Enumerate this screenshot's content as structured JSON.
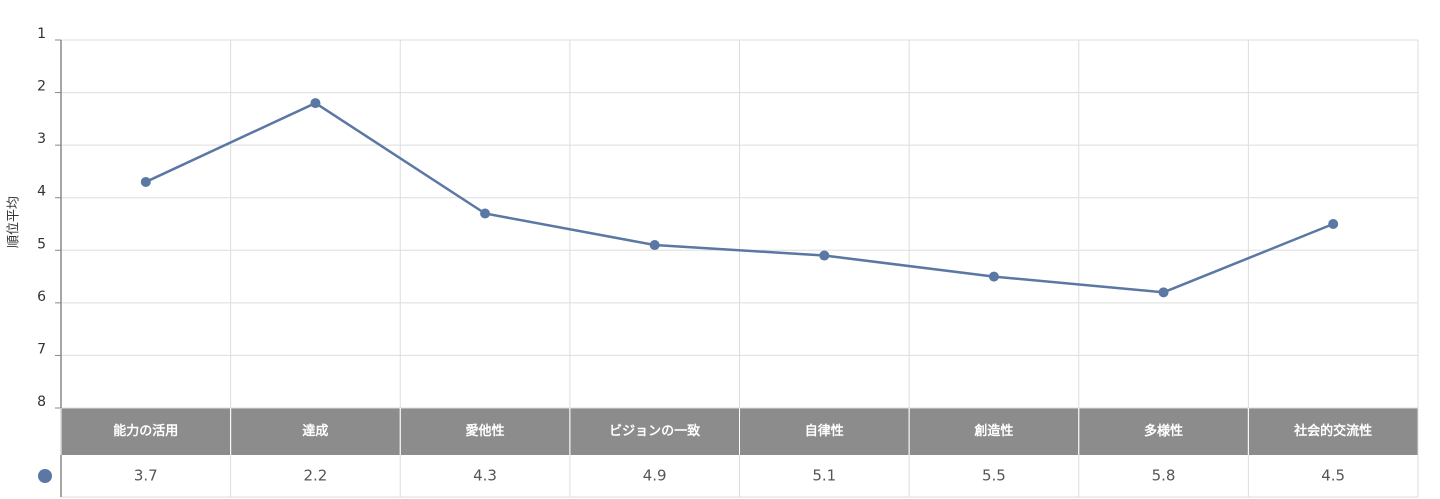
{
  "chart_data": {
    "type": "line",
    "y_label": "順位平均",
    "categories": [
      "能力の活用",
      "達成",
      "愛他性",
      "ビジョンの一致",
      "自律性",
      "創造性",
      "多様性",
      "社会的交流性"
    ],
    "series": [
      {
        "color": "#5b77a3",
        "values": [
          3.7,
          2.2,
          4.3,
          4.9,
          5.1,
          5.5,
          5.8,
          4.5
        ]
      }
    ],
    "ylim": [
      1,
      8
    ],
    "yticks": [
      1,
      2,
      3,
      4,
      5,
      6,
      7,
      8
    ],
    "y_reversed": true,
    "grid": true,
    "data_table": true
  }
}
